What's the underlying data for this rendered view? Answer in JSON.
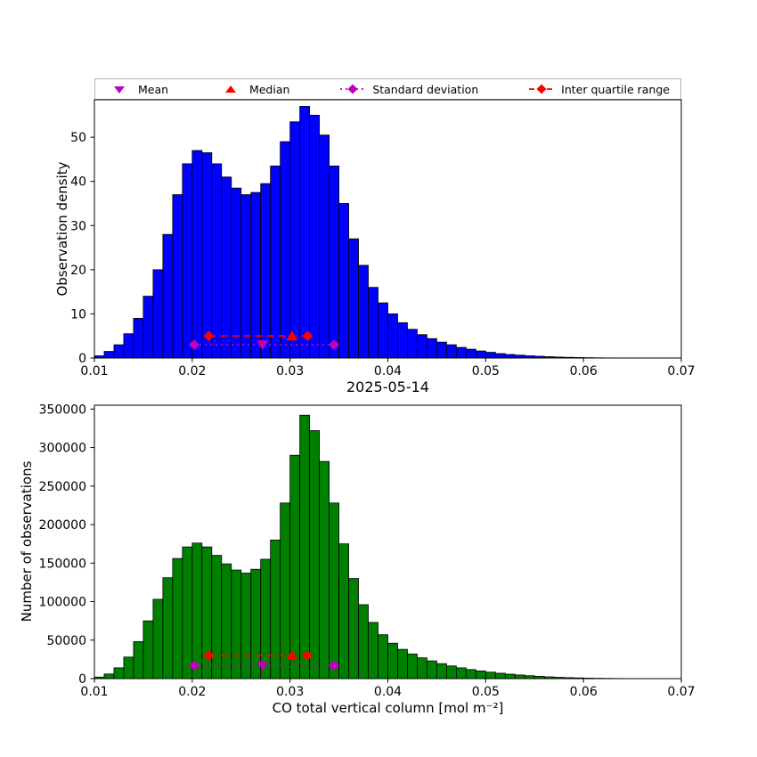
{
  "figure": {
    "title": "2025-05-14",
    "xlabel": "CO total vertical column [mol m⁻²]"
  },
  "legend": {
    "items": [
      {
        "label": "Mean",
        "marker": "triangle-down",
        "color": "#bf00bf"
      },
      {
        "label": "Median",
        "marker": "triangle-up",
        "color": "#ff0000"
      },
      {
        "label": "Standard deviation",
        "marker": "diamond-dotted-line",
        "color": "#bf00bf"
      },
      {
        "label": "Inter quartile range",
        "marker": "diamond-dashed-line",
        "color": "#ff0000"
      }
    ]
  },
  "chart_data": [
    {
      "type": "bar",
      "title": "",
      "ylabel": "Observation density",
      "xlim": [
        0.01,
        0.07
      ],
      "ylim": [
        0,
        58.5
      ],
      "bin_start": 0.01,
      "bin_width": 0.001,
      "bar_color": "#0000ff",
      "edge_color": "#000000",
      "grid": false,
      "xticks": [
        0.01,
        0.02,
        0.03,
        0.04,
        0.05,
        0.06,
        0.07
      ],
      "yticks": [
        0,
        10,
        20,
        30,
        40,
        50
      ],
      "values": [
        0.5,
        1.5,
        3,
        5.5,
        9,
        14,
        20,
        28,
        37,
        44,
        47,
        46.5,
        44,
        41,
        38.5,
        37,
        37.5,
        39.5,
        43.5,
        49,
        53.5,
        57,
        55,
        50.5,
        43.5,
        35,
        27,
        21,
        16,
        12.5,
        10,
        8,
        6.5,
        5.3,
        4.4,
        3.6,
        3,
        2.4,
        2,
        1.6,
        1.3,
        1,
        0.8,
        0.65,
        0.5,
        0.4,
        0.3,
        0.22,
        0.16,
        0.11,
        0.08,
        0.05,
        0.03,
        0.02,
        0.01,
        0,
        0,
        0,
        0,
        0
      ],
      "marker_colors": {
        "mean": "#bf00bf",
        "median": "#ff0000",
        "std": "#bf00bf",
        "iqr": "#ff0000"
      },
      "markers": {
        "mean": {
          "x": 0.0272,
          "y": 3
        },
        "median": {
          "x": 0.0302,
          "y": 5
        },
        "std": {
          "x1": 0.0202,
          "x2": 0.0345,
          "y": 3
        },
        "iqr": {
          "x1": 0.0217,
          "x2": 0.0318,
          "y": 5
        }
      }
    },
    {
      "type": "bar",
      "title": "2025-05-14",
      "ylabel": "Number of observations",
      "xlim": [
        0.01,
        0.07
      ],
      "ylim": [
        0,
        355000
      ],
      "bin_start": 0.01,
      "bin_width": 0.001,
      "bar_color": "#008000",
      "edge_color": "#000000",
      "grid": false,
      "xticks": [
        0.01,
        0.02,
        0.03,
        0.04,
        0.05,
        0.06,
        0.07
      ],
      "yticks": [
        0,
        50000,
        100000,
        150000,
        200000,
        250000,
        300000,
        350000
      ],
      "values": [
        2000,
        6000,
        14000,
        28000,
        48000,
        75000,
        103000,
        131000,
        156000,
        171000,
        176000,
        171000,
        160000,
        149000,
        141000,
        137000,
        142000,
        155000,
        180000,
        228000,
        290000,
        342000,
        322000,
        282000,
        228000,
        175000,
        130000,
        96000,
        73000,
        57000,
        46000,
        38000,
        32000,
        27000,
        23000,
        19500,
        16500,
        14000,
        11800,
        10000,
        8400,
        7000,
        5800,
        4700,
        3800,
        3000,
        2300,
        1750,
        1300,
        950,
        650,
        430,
        280,
        170,
        90,
        40,
        0,
        0,
        0,
        0
      ],
      "marker_colors": {
        "mean": "#bf00bf",
        "median": "#ff0000",
        "std": "#bf00bf",
        "iqr": "#ff0000"
      },
      "markers": {
        "mean": {
          "x": 0.0272,
          "y": 17000
        },
        "median": {
          "x": 0.0302,
          "y": 30000
        },
        "std": {
          "x1": 0.0202,
          "x2": 0.0345,
          "y": 17000
        },
        "iqr": {
          "x1": 0.0217,
          "x2": 0.0318,
          "y": 30000
        }
      }
    }
  ]
}
